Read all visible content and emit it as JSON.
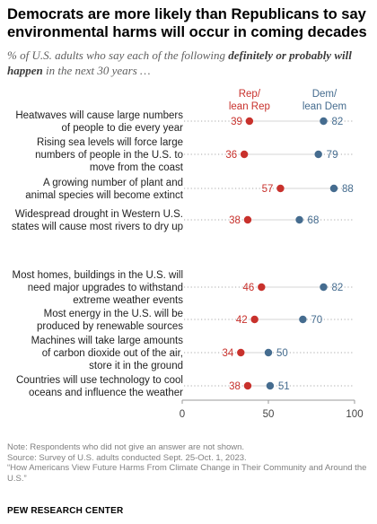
{
  "title": "Democrats are more likely than Republicans to say environmental harms will occur in coming decades",
  "subtitle_parts": {
    "before": "% of U.S. adults who say each of the following ",
    "emph": "definitely or probably will happen",
    "after": " in the next 30 years …"
  },
  "colors": {
    "rep": "#c8312c",
    "dem": "#456c8f",
    "line": "#a8a8a8",
    "axis": "#9a9a9a"
  },
  "chart_data": {
    "type": "dot-plot",
    "xlim": [
      0,
      100
    ],
    "xticks": [
      "0",
      "50",
      "100"
    ],
    "legend": [
      {
        "name": "Rep/\nlean Rep",
        "series": "rep"
      },
      {
        "name": "Dem/\nlean Dem",
        "series": "dem"
      }
    ],
    "rows": [
      {
        "label": "Heatwaves will cause large numbers of people to die every year",
        "lines": [
          "Heatwaves will cause large numbers",
          "of people to die every year"
        ],
        "rep": 39,
        "dem": 82
      },
      {
        "label": "Rising sea levels will force large numbers of people in the U.S. to move from the coast",
        "lines": [
          "Rising sea levels will force large",
          "numbers of people in the U.S. to",
          "move from the coast"
        ],
        "rep": 36,
        "dem": 79
      },
      {
        "label": "A growing number of plant and animal species will become extinct",
        "lines": [
          "A growing number of plant and",
          "animal species will become extinct"
        ],
        "rep": 57,
        "dem": 88
      },
      {
        "label": "Widespread drought in Western U.S. states will cause most rivers to dry up",
        "lines": [
          "Widespread drought in Western U.S.",
          "states will cause most rivers to dry up"
        ],
        "rep": 38,
        "dem": 68
      },
      {
        "label": "Most homes, buildings in the U.S. will need major upgrades to withstand extreme weather events",
        "lines": [
          "Most homes, buildings in the U.S. will",
          "need major upgrades to withstand",
          "extreme weather events"
        ],
        "rep": 46,
        "dem": 82
      },
      {
        "label": "Most energy in the U.S. will be produced by renewable sources",
        "lines": [
          "Most energy in the U.S. will be",
          "produced by renewable sources"
        ],
        "rep": 42,
        "dem": 70
      },
      {
        "label": "Machines will take large amounts of carbon dioxide out of the air, store it in the ground",
        "lines": [
          "Machines will take large amounts",
          "of carbon dioxide out of the air,",
          "store it in the ground"
        ],
        "rep": 34,
        "dem": 50
      },
      {
        "label": "Countries will use technology to cool oceans and influence the weather",
        "lines": [
          "Countries will use technology to cool",
          "oceans and influence the weather"
        ],
        "rep": 38,
        "dem": 51
      }
    ]
  },
  "notes": [
    "Note: Respondents who did not give an answer are not shown.",
    "Source: Survey of U.S. adults conducted Sept. 25-Oct. 1, 2023.",
    "“How Americans View Future Harms From Climate Change in Their Community and Around the U.S.”"
  ],
  "source_name": "PEW RESEARCH CENTER"
}
